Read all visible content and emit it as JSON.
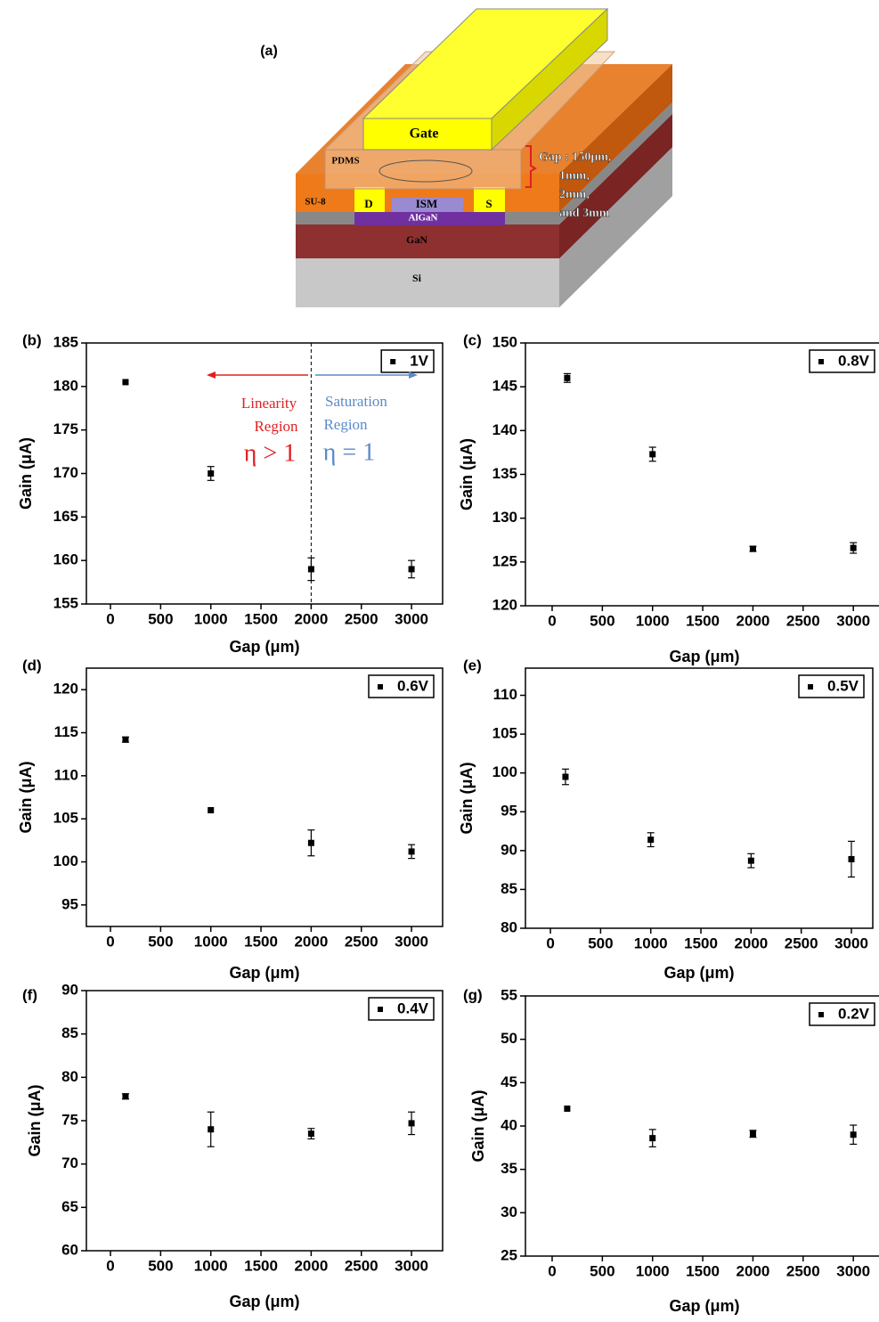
{
  "diagram": {
    "label": "(a)",
    "gate": "Gate",
    "pdms": "PDMS",
    "su8": "SU-8",
    "drain": "D",
    "ism": "ISM",
    "source": "S",
    "algan": "AlGaN",
    "gan": "GaN",
    "si": "Si",
    "gap_lines": [
      "Gap : 150μm,",
      "1mm,",
      "2mm,",
      "and 3mm"
    ]
  },
  "chart_data": [
    {
      "type": "scatter",
      "panel_label": "(b)",
      "x_label": "Gap (μm)",
      "y_label": "Gain (μA)",
      "x": [
        150,
        1000,
        2000,
        3000
      ],
      "xlim": [
        -240,
        3310
      ],
      "ylim": [
        155,
        185
      ],
      "xticks": [
        0,
        500,
        1000,
        1500,
        2000,
        2500,
        3000
      ],
      "yticks": [
        155,
        160,
        165,
        170,
        175,
        180,
        185
      ],
      "legend": "upper right",
      "series": [
        {
          "name": "1V",
          "color": "#000000",
          "values": [
            180.5,
            170,
            159,
            159
          ],
          "errors": [
            null,
            0.8,
            1.3,
            1
          ]
        }
      ],
      "vline": 2000,
      "annotations": [
        {
          "text": "Linearity",
          "color": "#e02020"
        },
        {
          "text": "Region",
          "color": "#e02020"
        },
        {
          "text": "η > 1",
          "color": "#e02020"
        },
        {
          "text": "Saturation",
          "color": "#5b8ac9"
        },
        {
          "text": "Region",
          "color": "#5b8ac9"
        },
        {
          "text": "η = 1",
          "color": "#5b8ac9"
        }
      ]
    },
    {
      "type": "scatter",
      "panel_label": "(c)",
      "x_label": "Gap (μm)",
      "y_label": "Gain (μA)",
      "x": [
        150,
        1000,
        2000,
        3000
      ],
      "xlim": [
        -266,
        3300
      ],
      "ylim": [
        120,
        150
      ],
      "xticks": [
        0,
        500,
        1000,
        1500,
        2000,
        2500,
        3000
      ],
      "yticks": [
        120,
        125,
        130,
        135,
        140,
        145,
        150
      ],
      "legend": "upper right",
      "series": [
        {
          "name": "0.8V",
          "color": "#000000",
          "values": [
            146,
            137.3,
            126.5,
            126.6
          ],
          "errors": [
            0.5,
            0.8,
            0.3,
            0.6
          ]
        }
      ]
    },
    {
      "type": "scatter",
      "panel_label": "(d)",
      "x_label": "Gap (μm)",
      "y_label": "Gain (μA)",
      "x": [
        150,
        1000,
        2000,
        3000
      ],
      "xlim": [
        -240,
        3310
      ],
      "ylim": [
        92.5,
        122.5
      ],
      "xticks": [
        0,
        500,
        1000,
        1500,
        2000,
        2500,
        3000
      ],
      "yticks": [
        95,
        100,
        105,
        110,
        115,
        120
      ],
      "legend": "upper right",
      "series": [
        {
          "name": "0.6V",
          "color": "#000000",
          "values": [
            114.2,
            106,
            102.2,
            101.2
          ],
          "errors": [
            0.3,
            null,
            1.5,
            0.8
          ]
        }
      ]
    },
    {
      "type": "scatter",
      "panel_label": "(e)",
      "x_label": "Gap (μm)",
      "y_label": "Gain (μA)",
      "x": [
        150,
        1000,
        2000,
        3000
      ],
      "xlim": [
        -249,
        3213
      ],
      "ylim": [
        80,
        113.5
      ],
      "xticks": [
        0,
        500,
        1000,
        1500,
        2000,
        2500,
        3000
      ],
      "yticks": [
        80,
        85,
        90,
        95,
        100,
        105,
        110
      ],
      "legend": "upper right",
      "series": [
        {
          "name": "0.5V",
          "color": "#000000",
          "values": [
            99.5,
            91.4,
            88.7,
            88.9
          ],
          "errors": [
            1,
            0.9,
            0.9,
            2.3
          ]
        }
      ]
    },
    {
      "type": "scatter",
      "panel_label": "(f)",
      "x_label": "Gap (μm)",
      "y_label": "Gain (μA)",
      "x": [
        150,
        1000,
        2000,
        3000
      ],
      "xlim": [
        -240,
        3310
      ],
      "ylim": [
        60,
        90
      ],
      "xticks": [
        0,
        500,
        1000,
        1500,
        2000,
        2500,
        3000
      ],
      "yticks": [
        60,
        65,
        70,
        75,
        80,
        85,
        90
      ],
      "legend": "upper right",
      "series": [
        {
          "name": "0.4V",
          "color": "#000000",
          "values": [
            77.8,
            74,
            73.5,
            74.7
          ],
          "errors": [
            0.3,
            2,
            0.6,
            1.3
          ]
        }
      ]
    },
    {
      "type": "scatter",
      "panel_label": "(g)",
      "x_label": "Gap (μm)",
      "y_label": "Gain (μA)",
      "x": [
        150,
        1000,
        2000,
        3000
      ],
      "xlim": [
        -266,
        3300
      ],
      "ylim": [
        25,
        55
      ],
      "xticks": [
        0,
        500,
        1000,
        1500,
        2000,
        2500,
        3000
      ],
      "yticks": [
        25,
        30,
        35,
        40,
        45,
        50,
        55
      ],
      "legend": "upper right",
      "series": [
        {
          "name": "0.2V",
          "color": "#000000",
          "values": [
            42,
            38.6,
            39.1,
            39
          ],
          "errors": [
            null,
            1,
            0.4,
            1.1
          ]
        }
      ]
    }
  ]
}
